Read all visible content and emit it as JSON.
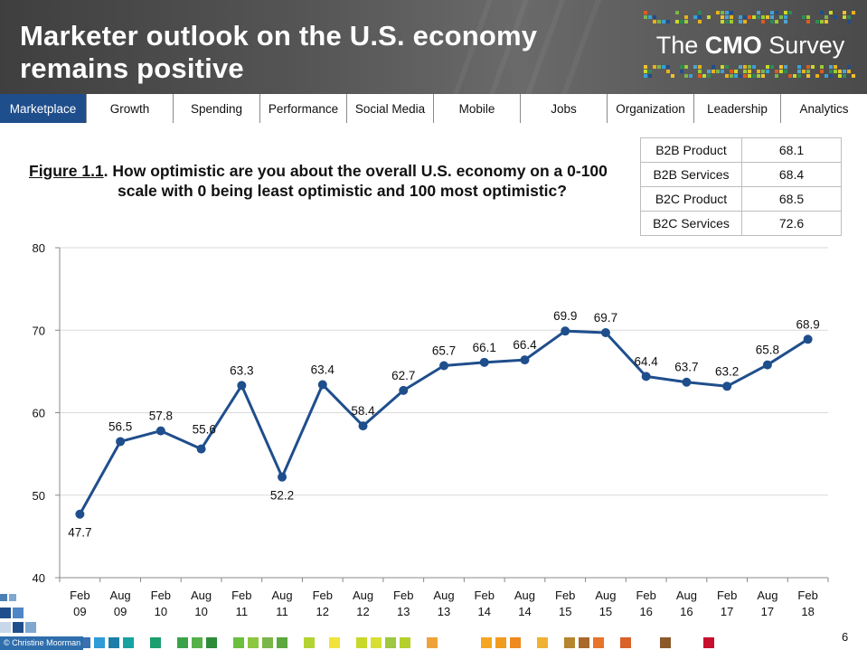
{
  "header": {
    "title": "Marketer outlook on the U.S. economy remains positive",
    "brand_prefix": "The ",
    "brand_bold": "CMO",
    "brand_suffix": " Survey"
  },
  "nav": {
    "tabs": [
      {
        "label": "Marketplace",
        "active": true
      },
      {
        "label": "Growth",
        "active": false
      },
      {
        "label": "Spending",
        "active": false
      },
      {
        "label": "Performance",
        "active": false
      },
      {
        "label": "Social Media",
        "active": false
      },
      {
        "label": "Mobile",
        "active": false
      },
      {
        "label": "Jobs",
        "active": false
      },
      {
        "label": "Organization",
        "active": false
      },
      {
        "label": "Leadership",
        "active": false
      },
      {
        "label": "Analytics",
        "active": false
      }
    ]
  },
  "figure": {
    "label": "Figure 1.1",
    "question_line1": ".  How optimistic are you about the overall U.S. economy on a 0-100",
    "question_line2": "scale with 0 being least optimistic and 100 most optimistic?"
  },
  "summary_table": {
    "rows": [
      {
        "segment": "B2B Product",
        "value": "68.1"
      },
      {
        "segment": "B2B Services",
        "value": "68.4"
      },
      {
        "segment": "B2C Product",
        "value": "68.5"
      },
      {
        "segment": "B2C Services",
        "value": "72.6"
      }
    ]
  },
  "chart_data": {
    "type": "line",
    "title": "",
    "xlabel": "",
    "ylabel": "",
    "ylim": [
      40,
      80
    ],
    "yticks": [
      40,
      50,
      60,
      70,
      80
    ],
    "categories": [
      [
        "Feb",
        "09"
      ],
      [
        "Aug",
        "09"
      ],
      [
        "Feb",
        "10"
      ],
      [
        "Aug",
        "10"
      ],
      [
        "Feb",
        "11"
      ],
      [
        "Aug",
        "11"
      ],
      [
        "Feb",
        "12"
      ],
      [
        "Aug",
        "12"
      ],
      [
        "Feb",
        "13"
      ],
      [
        "Aug",
        "13"
      ],
      [
        "Feb",
        "14"
      ],
      [
        "Aug",
        "14"
      ],
      [
        "Feb",
        "15"
      ],
      [
        "Aug",
        "15"
      ],
      [
        "Feb",
        "16"
      ],
      [
        "Aug",
        "16"
      ],
      [
        "Feb",
        "17"
      ],
      [
        "Aug",
        "17"
      ],
      [
        "Feb",
        "18"
      ]
    ],
    "series": [
      {
        "name": "Optimism",
        "color": "#1f4e8c",
        "values": [
          47.7,
          56.5,
          57.8,
          55.6,
          63.3,
          52.2,
          63.4,
          58.4,
          62.7,
          65.7,
          66.1,
          66.4,
          69.9,
          69.7,
          64.4,
          63.7,
          63.2,
          65.8,
          68.9
        ],
        "labels": [
          "47.7",
          "56.5",
          "57.8",
          "55.6",
          "63.3",
          "52.2",
          "63.4",
          "58.4",
          "62.7",
          "65.7",
          "66.1",
          "66.4",
          "69.9",
          "69.7",
          "64.4",
          "63.7",
          "63.2",
          "65.8",
          "68.9"
        ],
        "label_pos": [
          "below",
          "above",
          "above",
          "right",
          "above",
          "below",
          "above",
          "above",
          "above",
          "above",
          "above",
          "above",
          "above",
          "above",
          "above",
          "above",
          "above",
          "above",
          "above"
        ]
      }
    ],
    "grid": true,
    "legend": "none"
  },
  "footer": {
    "credit": "© Christine Moorman",
    "page_number": "6"
  },
  "colors": {
    "accent": "#1f4e8c",
    "nav_active": "#1f4e8c",
    "grid": "#d9d9d9"
  }
}
